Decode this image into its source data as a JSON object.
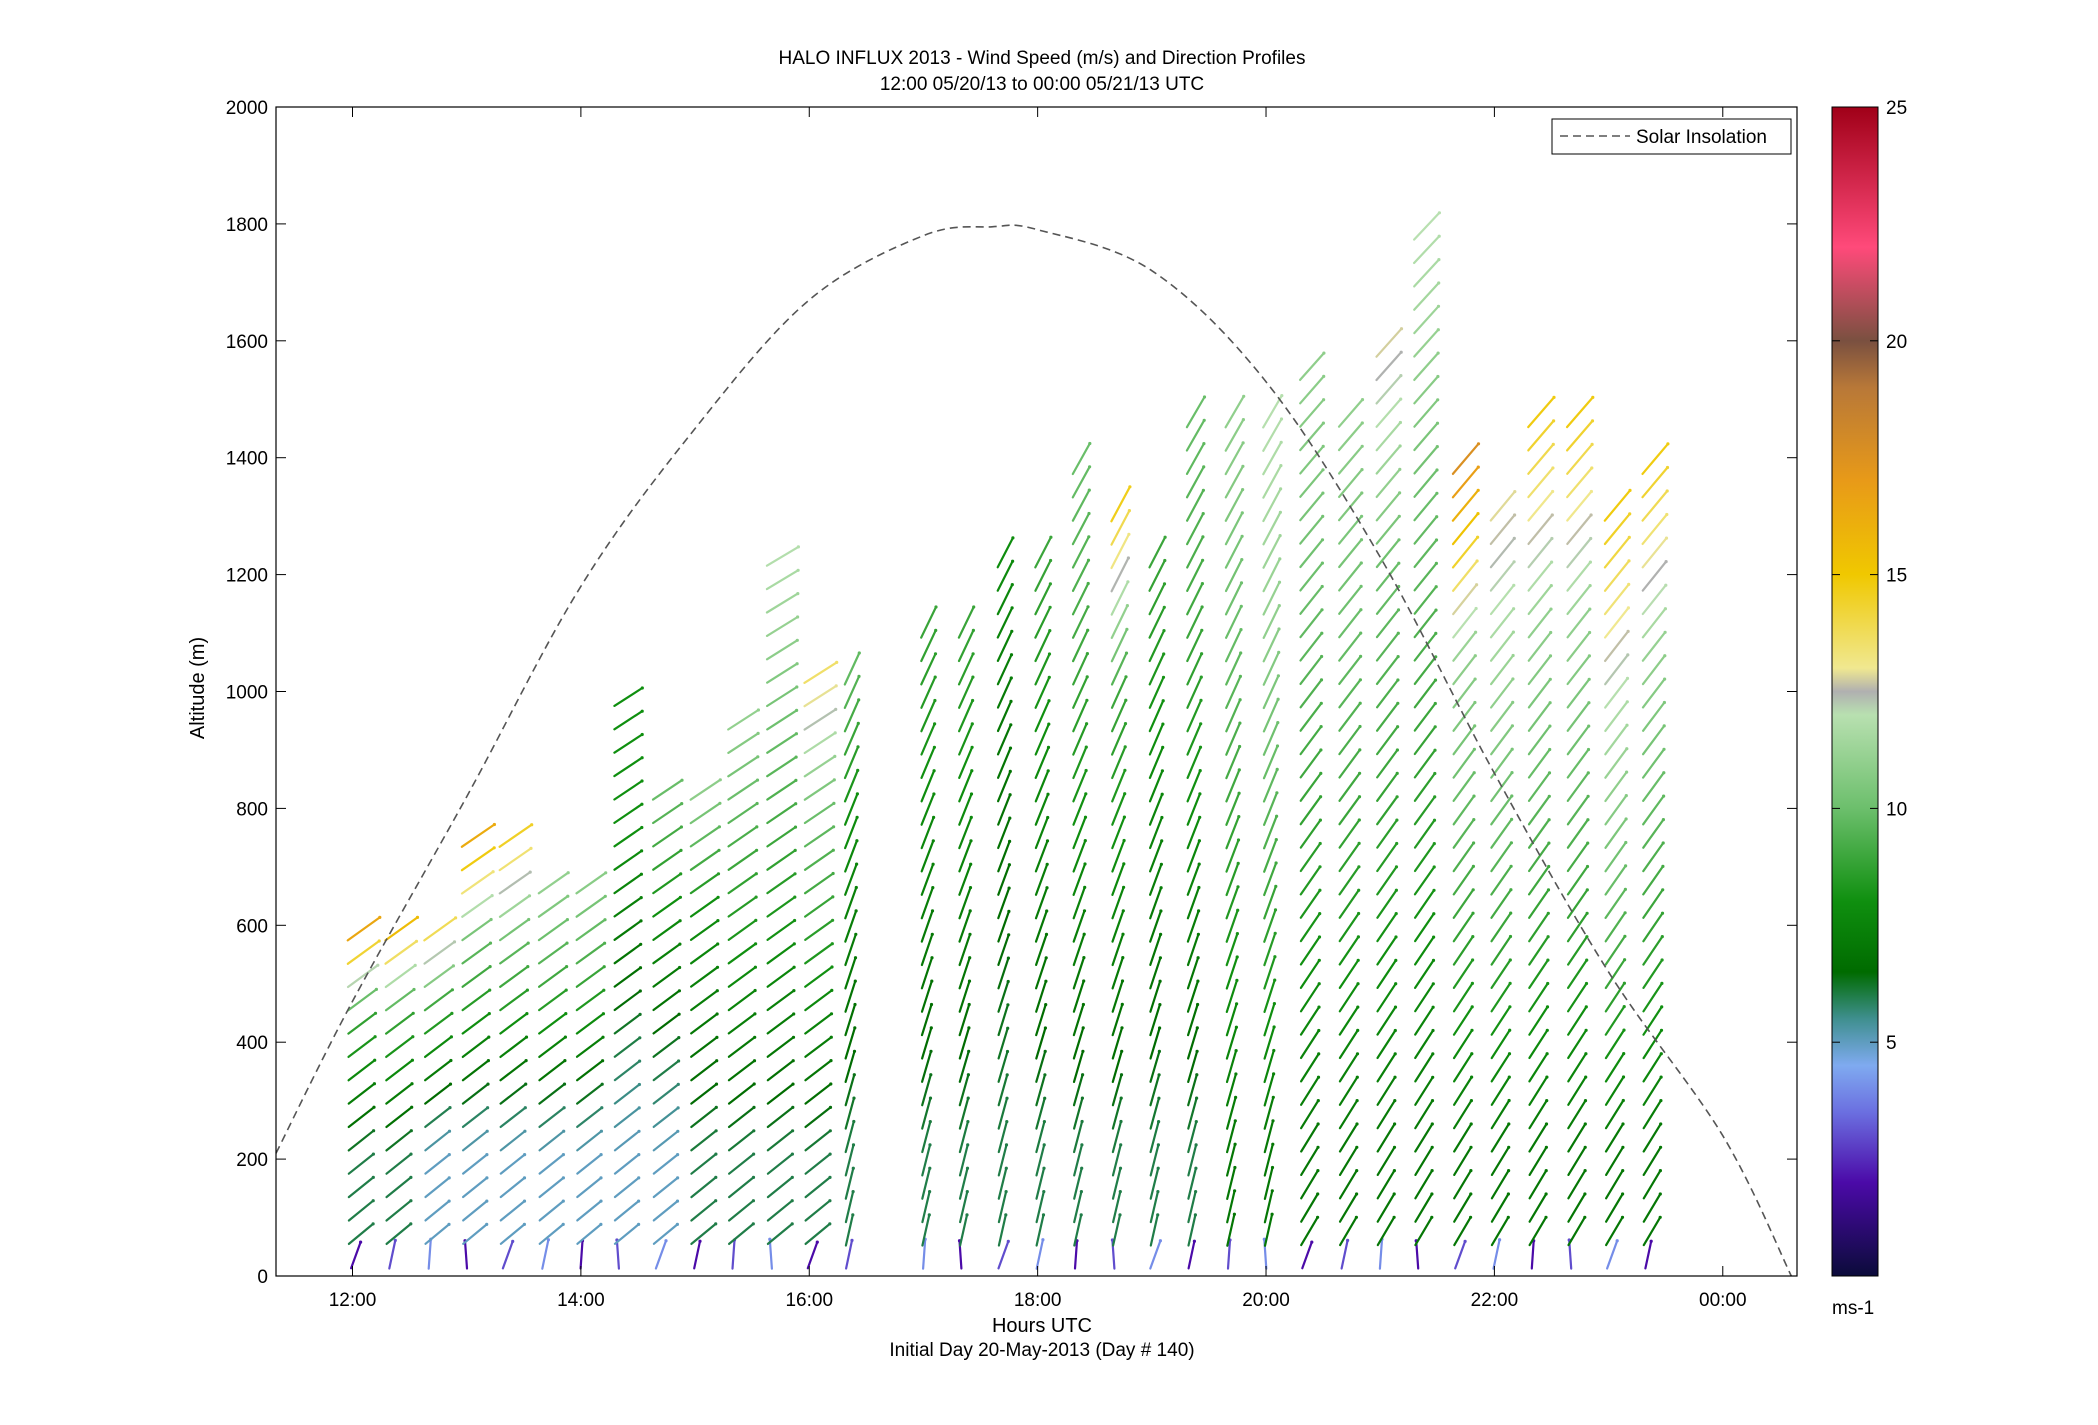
{
  "chart_data": {
    "type": "wind-barb-profile",
    "title": "HALO INFLUX 2013 - Wind Speed (m/s) and Direction Profiles",
    "subtitle": "12:00 05/20/13 to 00:00 05/21/13  UTC",
    "xlabel": "Hours UTC",
    "xlabel2": "Initial Day 20-May-2013 (Day # 140)",
    "ylabel": "Altitude (m)",
    "xlim_hours": [
      11.33,
      24.65
    ],
    "ylim": [
      0,
      2000
    ],
    "x_ticks": [
      {
        "value": 12,
        "label": "12:00"
      },
      {
        "value": 14,
        "label": "14:00"
      },
      {
        "value": 16,
        "label": "16:00"
      },
      {
        "value": 18,
        "label": "18:00"
      },
      {
        "value": 20,
        "label": "20:00"
      },
      {
        "value": 22,
        "label": "22:00"
      },
      {
        "value": 24,
        "label": "00:00"
      }
    ],
    "y_ticks": [
      0,
      200,
      400,
      600,
      800,
      1000,
      1200,
      1400,
      1600,
      1800,
      2000
    ],
    "legend": {
      "label": "Solar Insolation",
      "placement": "top-right",
      "style": "dashed"
    },
    "colorbar": {
      "min": 0,
      "max": 25,
      "ticks": [
        5,
        10,
        15,
        20,
        25
      ],
      "unit": "ms-1",
      "stops": [
        {
          "v": 0,
          "c": "#0b0b3a"
        },
        {
          "v": 2,
          "c": "#4b0aa8"
        },
        {
          "v": 3.5,
          "c": "#6b6fe0"
        },
        {
          "v": 4.5,
          "c": "#7faaf0"
        },
        {
          "v": 5.5,
          "c": "#3f8f8f"
        },
        {
          "v": 6.5,
          "c": "#006b00"
        },
        {
          "v": 8,
          "c": "#0f8f0f"
        },
        {
          "v": 10,
          "c": "#6cbf6c"
        },
        {
          "v": 12,
          "c": "#b8e0b0"
        },
        {
          "v": 12.5,
          "c": "#b0b0b0"
        },
        {
          "v": 13,
          "c": "#f0e890"
        },
        {
          "v": 15,
          "c": "#f0c800"
        },
        {
          "v": 17,
          "c": "#e89a18"
        },
        {
          "v": 19,
          "c": "#b87838"
        },
        {
          "v": 20,
          "c": "#7a5040"
        },
        {
          "v": 22,
          "c": "#ff4a7a"
        },
        {
          "v": 25,
          "c": "#a00018"
        }
      ]
    },
    "solar_insolation": {
      "peak_hour": 17.6,
      "peak_altitude_m": 1795,
      "x": [
        11.33,
        12,
        13,
        14,
        15,
        16,
        17,
        17.6,
        18,
        19,
        20,
        21,
        22,
        23,
        24,
        24.6
      ],
      "y": [
        210,
        470,
        820,
        1180,
        1450,
        1670,
        1780,
        1795,
        1790,
        1720,
        1530,
        1230,
        860,
        520,
        240,
        0
      ]
    },
    "profiles": [
      {
        "time": 12.0,
        "top": 590,
        "speed_low": 6,
        "speed_mid": 9,
        "speed_top": 17
      },
      {
        "time": 12.33,
        "top": 590,
        "speed_low": 6,
        "speed_mid": 9,
        "speed_top": 16
      },
      {
        "time": 12.67,
        "top": 610,
        "speed_low": 5,
        "speed_mid": 9,
        "speed_top": 15
      },
      {
        "time": 13.0,
        "top": 760,
        "speed_low": 5,
        "speed_mid": 10,
        "speed_top": 17
      },
      {
        "time": 13.33,
        "top": 760,
        "speed_low": 5,
        "speed_mid": 10,
        "speed_top": 15
      },
      {
        "time": 13.67,
        "top": 660,
        "speed_low": 5,
        "speed_mid": 9,
        "speed_top": 11
      },
      {
        "time": 14.0,
        "top": 680,
        "speed_low": 5,
        "speed_mid": 9,
        "speed_top": 11
      },
      {
        "time": 14.33,
        "top": 980,
        "speed_low": 5,
        "speed_mid": 8,
        "speed_top": 8
      },
      {
        "time": 14.67,
        "top": 830,
        "speed_low": 5,
        "speed_mid": 8,
        "speed_top": 10
      },
      {
        "time": 15.0,
        "top": 830,
        "speed_low": 6,
        "speed_mid": 8,
        "speed_top": 11
      },
      {
        "time": 15.33,
        "top": 940,
        "speed_low": 6,
        "speed_mid": 9,
        "speed_top": 11
      },
      {
        "time": 15.67,
        "top": 1240,
        "speed_low": 6,
        "speed_mid": 10,
        "speed_top": 12
      },
      {
        "time": 16.0,
        "top": 1050,
        "speed_low": 6,
        "speed_mid": 10,
        "speed_top": 14
      },
      {
        "time": 16.33,
        "top": 1050,
        "speed_low": 6,
        "speed_mid": 8,
        "speed_top": 10
      },
      {
        "time": 17.0,
        "top": 1130,
        "speed_low": 6,
        "speed_mid": 8,
        "speed_top": 9
      },
      {
        "time": 17.33,
        "top": 1130,
        "speed_low": 6,
        "speed_mid": 8,
        "speed_top": 9
      },
      {
        "time": 17.67,
        "top": 1240,
        "speed_low": 6,
        "speed_mid": 7,
        "speed_top": 8
      },
      {
        "time": 18.0,
        "top": 1240,
        "speed_low": 6,
        "speed_mid": 8,
        "speed_top": 9
      },
      {
        "time": 18.33,
        "top": 1400,
        "speed_low": 6,
        "speed_mid": 9,
        "speed_top": 10
      },
      {
        "time": 18.67,
        "top": 1320,
        "speed_low": 6,
        "speed_mid": 9,
        "speed_top": 15
      },
      {
        "time": 19.0,
        "top": 1240,
        "speed_low": 6,
        "speed_mid": 8,
        "speed_top": 9
      },
      {
        "time": 19.33,
        "top": 1480,
        "speed_low": 6,
        "speed_mid": 9,
        "speed_top": 10
      },
      {
        "time": 19.67,
        "top": 1480,
        "speed_low": 7,
        "speed_mid": 10,
        "speed_top": 11
      },
      {
        "time": 20.0,
        "top": 1480,
        "speed_low": 7,
        "speed_mid": 11,
        "speed_top": 12
      },
      {
        "time": 20.33,
        "top": 1570,
        "speed_low": 7,
        "speed_mid": 10,
        "speed_top": 11
      },
      {
        "time": 20.67,
        "top": 1480,
        "speed_low": 7,
        "speed_mid": 10,
        "speed_top": 11
      },
      {
        "time": 21.0,
        "top": 1610,
        "speed_low": 7,
        "speed_mid": 10,
        "speed_top": 13
      },
      {
        "time": 21.33,
        "top": 1780,
        "speed_low": 7,
        "speed_mid": 10,
        "speed_top": 12
      },
      {
        "time": 21.67,
        "top": 1400,
        "speed_low": 7,
        "speed_mid": 11,
        "speed_top": 18
      },
      {
        "time": 22.0,
        "top": 1320,
        "speed_low": 7,
        "speed_mid": 11,
        "speed_top": 13
      },
      {
        "time": 22.33,
        "top": 1480,
        "speed_low": 7,
        "speed_mid": 11,
        "speed_top": 15
      },
      {
        "time": 22.67,
        "top": 1480,
        "speed_low": 7,
        "speed_mid": 11,
        "speed_top": 15
      },
      {
        "time": 23.0,
        "top": 1320,
        "speed_low": 7,
        "speed_mid": 12,
        "speed_top": 15
      },
      {
        "time": 23.33,
        "top": 1400,
        "speed_low": 7,
        "speed_mid": 11,
        "speed_top": 15
      }
    ]
  }
}
